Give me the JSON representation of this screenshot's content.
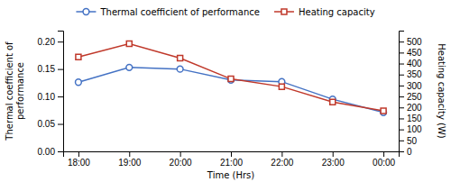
{
  "chart_data": {
    "type": "line",
    "categories": [
      "18:00",
      "19:00",
      "20:00",
      "21:00",
      "22:00",
      "23:00",
      "00:00"
    ],
    "series": [
      {
        "name": "Thermal coefficient of performance",
        "color": "#4472C4",
        "marker": "circle",
        "line_style": "solid",
        "axis": "y",
        "values": [
          0.126,
          0.153,
          0.15,
          0.13,
          0.127,
          0.095,
          0.071
        ]
      },
      {
        "name": "Heating capacity",
        "color": "#C0392B",
        "marker": "square",
        "line_style": "solid",
        "axis": "y2",
        "values": [
          430,
          490,
          425,
          330,
          295,
          225,
          185
        ]
      }
    ],
    "xlabel": "Time (Hrs)",
    "ylabel": "Thermal coefficient of\nperformance",
    "y2label": "Heating capacity (W)",
    "ylim": [
      0,
      0.22
    ],
    "yticks": [
      {
        "value": 0,
        "label": "0.00"
      },
      0.05,
      {
        "value": 0.1,
        "label": "0.10"
      },
      0.15,
      {
        "value": 0.2,
        "label": "0.20"
      }
    ],
    "y2lim": [
      0,
      550
    ],
    "y2ticks": [
      0,
      50,
      100,
      150,
      200,
      250,
      300,
      350,
      400,
      450,
      500
    ],
    "grid": false,
    "legend": "top"
  }
}
